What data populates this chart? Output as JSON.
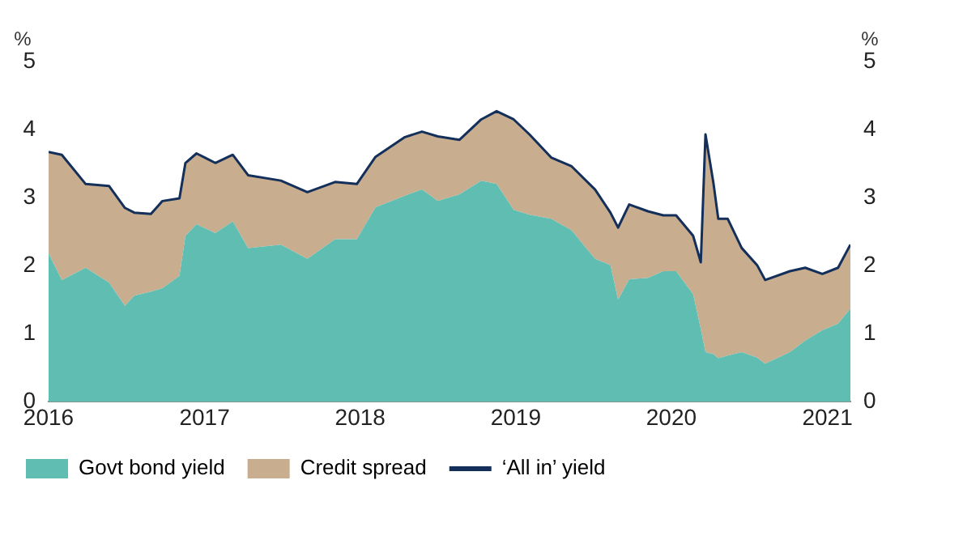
{
  "chart_data": {
    "type": "area",
    "stacked": true,
    "legend": "bottom",
    "grid": false,
    "ylabel": "%",
    "y2label": "%",
    "x": [
      "2016-01-01",
      "2016-02-01",
      "2016-03-28",
      "2016-05-22",
      "2016-06-28",
      "2016-07-20",
      "2016-08-28",
      "2016-09-24",
      "2016-11-03",
      "2016-11-17",
      "2016-12-13",
      "2017-01-26",
      "2017-03-08",
      "2017-04-13",
      "2017-06-29",
      "2017-08-30",
      "2017-11-03",
      "2017-12-24",
      "2018-02-06",
      "2018-04-16",
      "2018-05-26",
      "2018-07-02",
      "2018-08-22",
      "2018-10-12",
      "2018-11-17",
      "2018-12-27",
      "2019-02-02",
      "2019-03-25",
      "2019-05-12",
      "2019-07-06",
      "2019-08-11",
      "2019-08-29",
      "2019-09-24",
      "2019-11-07",
      "2019-12-13",
      "2020-01-12",
      "2020-02-21",
      "2020-03-10",
      "2020-03-21",
      "2020-04-09",
      "2020-04-20",
      "2020-05-12",
      "2020-06-14",
      "2020-07-20",
      "2020-08-08",
      "2020-10-05",
      "2020-11-10",
      "2020-12-20",
      "2021-01-26",
      "2021-02-24"
    ],
    "xlim": [
      "2016-01-01",
      "2021-02-24"
    ],
    "xticks": [
      "2016",
      "2017",
      "2018",
      "2019",
      "2020",
      "2021"
    ],
    "ylim": [
      0,
      5
    ],
    "yticks": [
      0,
      1,
      2,
      3,
      4,
      5
    ],
    "y2lim": [
      0,
      5
    ],
    "y2ticks": [
      0,
      1,
      2,
      3,
      4,
      5
    ],
    "series": [
      {
        "name": "Govt bond yield",
        "color": "#5fbdb1",
        "values": [
          2.18,
          1.79,
          1.97,
          1.75,
          1.41,
          1.56,
          1.62,
          1.67,
          1.85,
          2.44,
          2.61,
          2.48,
          2.65,
          2.26,
          2.31,
          2.1,
          2.39,
          2.39,
          2.86,
          3.03,
          3.12,
          2.95,
          3.05,
          3.25,
          3.2,
          2.82,
          2.75,
          2.69,
          2.52,
          2.1,
          2.01,
          1.5,
          1.8,
          1.82,
          1.92,
          1.92,
          1.58,
          1.07,
          0.73,
          0.7,
          0.64,
          0.68,
          0.73,
          0.65,
          0.56,
          0.73,
          0.9,
          1.05,
          1.15,
          1.37
        ]
      },
      {
        "name": "Credit spread",
        "color": "#c9ad8f",
        "values": [
          1.49,
          1.84,
          1.23,
          1.42,
          1.44,
          1.22,
          1.14,
          1.28,
          1.14,
          1.07,
          1.04,
          1.03,
          0.98,
          1.07,
          0.94,
          0.98,
          0.84,
          0.81,
          0.74,
          0.86,
          0.85,
          0.95,
          0.8,
          0.9,
          1.07,
          1.33,
          1.18,
          0.9,
          0.94,
          1.02,
          0.77,
          1.06,
          1.1,
          0.98,
          0.82,
          0.82,
          0.86,
          0.98,
          3.2,
          2.5,
          2.05,
          2.01,
          1.53,
          1.36,
          1.23,
          1.19,
          1.07,
          0.83,
          0.82,
          0.94
        ]
      },
      {
        "name": "‘All in’ yield",
        "type": "line",
        "color": "#14305a",
        "values": [
          3.67,
          3.63,
          3.2,
          3.17,
          2.85,
          2.78,
          2.76,
          2.95,
          2.99,
          3.51,
          3.65,
          3.51,
          3.63,
          3.33,
          3.25,
          3.08,
          3.23,
          3.2,
          3.6,
          3.89,
          3.97,
          3.9,
          3.85,
          4.15,
          4.27,
          4.15,
          3.93,
          3.59,
          3.46,
          3.12,
          2.78,
          2.56,
          2.9,
          2.8,
          2.74,
          2.74,
          2.44,
          2.05,
          3.93,
          3.2,
          2.69,
          2.69,
          2.26,
          2.01,
          1.79,
          1.92,
          1.97,
          1.88,
          1.97,
          2.31
        ]
      }
    ]
  }
}
